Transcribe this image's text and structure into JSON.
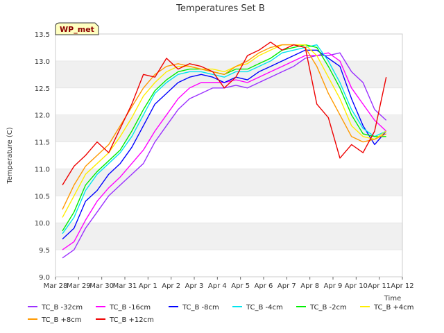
{
  "chart_data": {
    "type": "line",
    "title": "Temperatures Set B",
    "xlabel": "Time",
    "ylabel": "Temperature (C)",
    "station_badge": "WP_met",
    "x_ticks": [
      "Mar 28",
      "Mar 29",
      "Mar 30",
      "Mar 31",
      "Apr 1",
      "Apr 2",
      "Apr 3",
      "Apr 4",
      "Apr 5",
      "Apr 6",
      "Apr 7",
      "Apr 8",
      "Apr 9",
      "Apr 10",
      "Apr 11",
      "Apr 12"
    ],
    "x_tick_days": [
      0,
      1,
      2,
      3,
      4,
      5,
      6,
      7,
      8,
      9,
      10,
      11,
      12,
      13,
      14,
      15
    ],
    "xlim_days": [
      0,
      15
    ],
    "y_ticks": [
      "9.0",
      "9.5",
      "10.0",
      "10.5",
      "11.0",
      "11.5",
      "12.0",
      "12.5",
      "13.0",
      "13.5"
    ],
    "ylim": [
      9.0,
      13.5
    ],
    "grid": "horizontal bands",
    "legend_position": "bottom",
    "x_days": [
      0.3,
      0.8,
      1.3,
      1.8,
      2.3,
      2.8,
      3.3,
      3.8,
      4.3,
      4.8,
      5.3,
      5.8,
      6.3,
      6.8,
      7.3,
      7.8,
      8.3,
      8.8,
      9.3,
      9.8,
      10.3,
      10.8,
      11.3,
      11.8,
      12.3,
      12.8,
      13.3,
      13.8,
      14.3
    ],
    "series": [
      {
        "name": "TC_B -32cm",
        "color": "#9b30ff",
        "values": [
          9.35,
          9.5,
          9.9,
          10.2,
          10.5,
          10.7,
          10.9,
          11.1,
          11.5,
          11.8,
          12.1,
          12.3,
          12.4,
          12.5,
          12.5,
          12.55,
          12.5,
          12.6,
          12.7,
          12.8,
          12.9,
          13.05,
          13.1,
          13.1,
          13.15,
          12.8,
          12.6,
          12.1,
          11.9
        ]
      },
      {
        "name": "TC_B -16cm",
        "color": "#ff00ff",
        "values": [
          9.5,
          9.65,
          10.05,
          10.4,
          10.65,
          10.85,
          11.1,
          11.35,
          11.7,
          12.0,
          12.3,
          12.5,
          12.6,
          12.6,
          12.6,
          12.65,
          12.6,
          12.7,
          12.8,
          12.9,
          13.0,
          13.1,
          13.1,
          13.15,
          13.0,
          12.5,
          12.2,
          11.9,
          11.7
        ]
      },
      {
        "name": "TC_B -8cm",
        "color": "#0000ff",
        "values": [
          9.7,
          9.9,
          10.4,
          10.6,
          10.9,
          11.1,
          11.4,
          11.8,
          12.2,
          12.4,
          12.6,
          12.7,
          12.75,
          12.7,
          12.6,
          12.7,
          12.65,
          12.8,
          12.9,
          13.0,
          13.1,
          13.2,
          13.2,
          13.05,
          12.9,
          12.3,
          11.8,
          11.45,
          11.7
        ]
      },
      {
        "name": "TC_B -4cm",
        "color": "#00e5ee",
        "values": [
          9.8,
          10.1,
          10.6,
          10.9,
          11.1,
          11.3,
          11.6,
          12.0,
          12.4,
          12.6,
          12.75,
          12.8,
          12.8,
          12.75,
          12.7,
          12.8,
          12.8,
          12.9,
          13.0,
          13.15,
          13.2,
          13.25,
          13.3,
          13.0,
          12.6,
          12.1,
          11.75,
          11.6,
          11.7
        ]
      },
      {
        "name": "TC_B -2cm",
        "color": "#00ee00",
        "values": [
          9.85,
          10.2,
          10.7,
          10.95,
          11.15,
          11.35,
          11.7,
          12.1,
          12.45,
          12.65,
          12.8,
          12.85,
          12.85,
          12.8,
          12.75,
          12.85,
          12.85,
          12.95,
          13.05,
          13.2,
          13.25,
          13.3,
          13.25,
          12.9,
          12.5,
          12.0,
          11.65,
          11.6,
          11.6
        ]
      },
      {
        "name": "TC_B +4cm",
        "color": "#ffee00",
        "values": [
          10.1,
          10.5,
          10.9,
          11.1,
          11.3,
          11.6,
          11.95,
          12.35,
          12.6,
          12.8,
          12.9,
          12.9,
          12.85,
          12.85,
          12.8,
          12.9,
          12.95,
          13.1,
          13.2,
          13.3,
          13.3,
          13.3,
          13.1,
          12.7,
          12.3,
          11.8,
          11.6,
          11.55,
          11.7
        ]
      },
      {
        "name": "TC_B +8cm",
        "color": "#ff9900",
        "values": [
          10.25,
          10.7,
          11.05,
          11.25,
          11.45,
          11.8,
          12.15,
          12.5,
          12.75,
          12.9,
          12.95,
          12.9,
          12.85,
          12.8,
          12.75,
          12.9,
          13.0,
          13.15,
          13.25,
          13.3,
          13.3,
          13.25,
          12.9,
          12.4,
          12.0,
          11.6,
          11.5,
          11.55,
          11.65
        ]
      },
      {
        "name": "TC_B +12cm",
        "color": "#ee0000",
        "values": [
          10.7,
          11.05,
          11.25,
          11.5,
          11.3,
          11.75,
          12.2,
          12.75,
          12.7,
          13.05,
          12.85,
          12.95,
          12.9,
          12.8,
          12.5,
          12.7,
          13.1,
          13.2,
          13.35,
          13.2,
          13.3,
          13.25,
          12.2,
          11.95,
          11.2,
          11.45,
          11.3,
          11.7,
          12.7
        ]
      }
    ]
  }
}
